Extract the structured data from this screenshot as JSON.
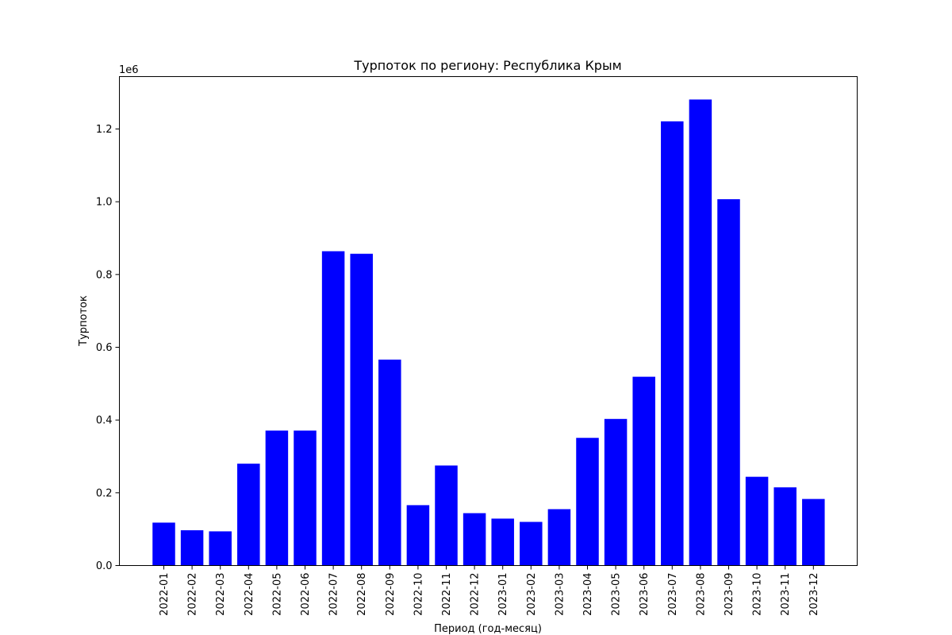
{
  "chart_data": {
    "type": "bar",
    "title": "Турпоток по региону: Республика Крым",
    "xlabel": "Период (год-месяц)",
    "ylabel": "Турпоток",
    "offset_label": "1e6",
    "categories": [
      "2022-01",
      "2022-02",
      "2022-03",
      "2022-04",
      "2022-05",
      "2022-06",
      "2022-07",
      "2022-08",
      "2022-09",
      "2022-10",
      "2022-11",
      "2022-12",
      "2023-01",
      "2023-02",
      "2023-03",
      "2023-04",
      "2023-05",
      "2023-06",
      "2023-07",
      "2023-08",
      "2023-09",
      "2023-10",
      "2023-11",
      "2023-12"
    ],
    "values": [
      118000,
      97000,
      94000,
      280000,
      371000,
      371000,
      864000,
      857000,
      566000,
      166000,
      275000,
      144000,
      129000,
      120000,
      155000,
      351000,
      403000,
      519000,
      1221000,
      1281000,
      1007000,
      244000,
      215000,
      183000
    ],
    "yticks": [
      0.0,
      0.2,
      0.4,
      0.6,
      0.8,
      1.0,
      1.2
    ],
    "ytick_labels": [
      "0.0",
      "0.2",
      "0.4",
      "0.6",
      "0.8",
      "1.0",
      "1.2"
    ],
    "ylim": [
      0,
      1344000
    ],
    "bar_color": "#0000ff",
    "grid": false
  }
}
